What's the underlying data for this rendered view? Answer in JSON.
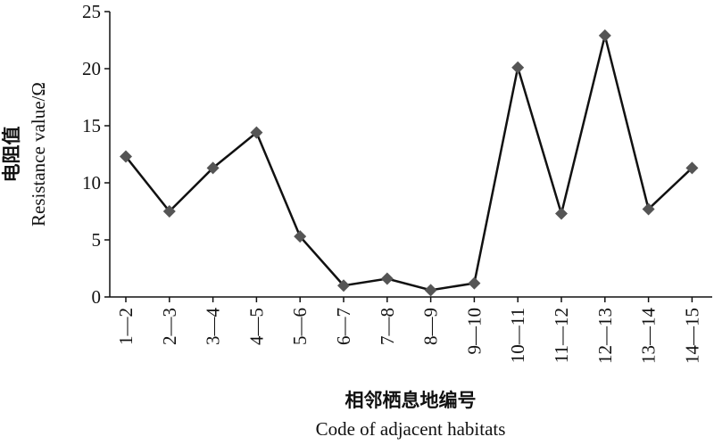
{
  "chart_data": {
    "type": "line",
    "y_label_cn": "电阻值",
    "y_label": "Resistance value/Ω",
    "x_label_cn": "相邻栖息地编号",
    "x_label": "Code of adjacent habitats",
    "categories": [
      "1—2",
      "2—3",
      "3—4",
      "4—5",
      "5—6",
      "6—7",
      "7—8",
      "8—9",
      "9—10",
      "10—11",
      "11—12",
      "12—13",
      "13—14",
      "14—15"
    ],
    "values": [
      12.3,
      7.5,
      11.3,
      14.4,
      5.3,
      1.0,
      1.6,
      0.6,
      1.2,
      20.1,
      7.3,
      22.9,
      7.7,
      11.3
    ],
    "color": "#111111",
    "marker_color": "#555555",
    "ylim": [
      0,
      25
    ],
    "yticks": [
      0,
      5,
      10,
      15,
      20,
      25
    ]
  }
}
